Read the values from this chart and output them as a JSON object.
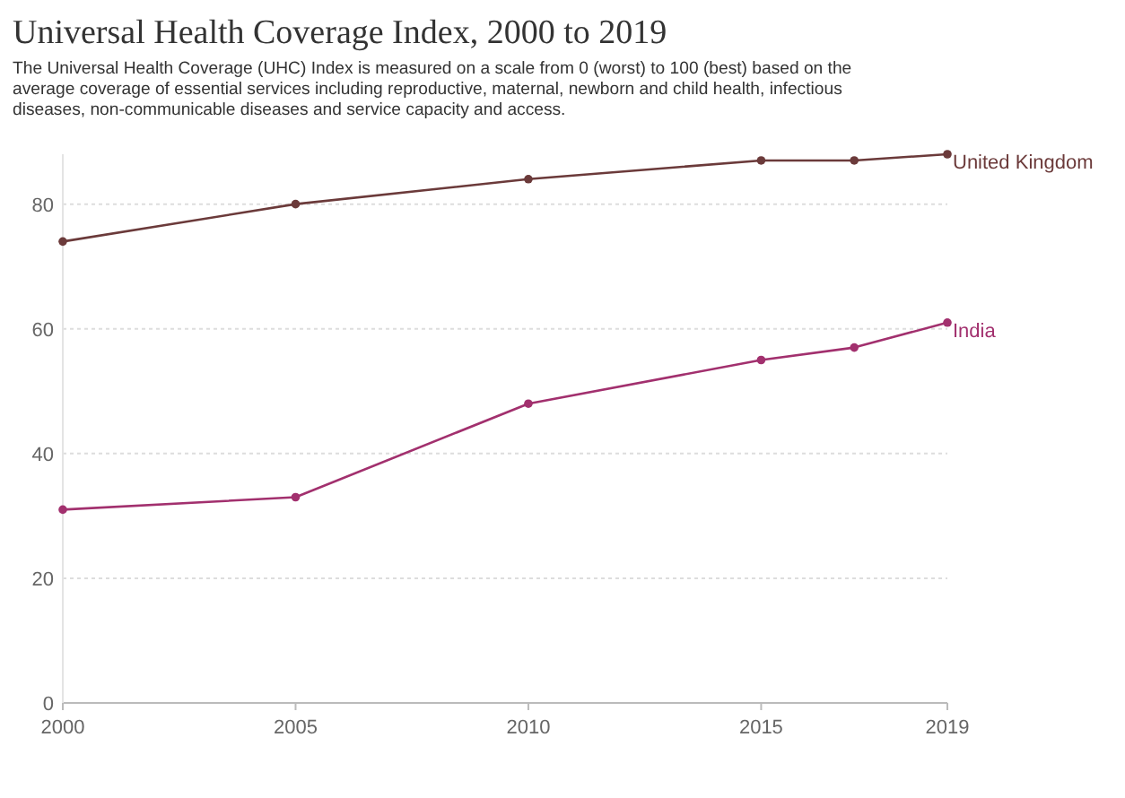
{
  "chart_data": {
    "type": "line",
    "title": "Universal Health Coverage Index, 2000 to 2019",
    "subtitle": "The Universal Health Coverage (UHC) Index is measured on a scale from 0 (worst) to 100 (best) based on the average coverage of essential services including reproductive, maternal, newborn and child health, infectious diseases, non-communicable diseases and service capacity and access.",
    "x": [
      2000,
      2005,
      2010,
      2015,
      2017,
      2019
    ],
    "series": [
      {
        "name": "United Kingdom",
        "color": "#6b3a3a",
        "values": [
          74,
          80,
          84,
          87,
          87,
          88
        ]
      },
      {
        "name": "India",
        "color": "#a2306e",
        "values": [
          31,
          33,
          48,
          55,
          57,
          61
        ]
      }
    ],
    "xlim": [
      2000,
      2019
    ],
    "xticks": [
      2000,
      2005,
      2010,
      2015,
      2019
    ],
    "ylim": [
      0,
      88
    ],
    "yticks": [
      0,
      20,
      40,
      60,
      80
    ],
    "grid": "y",
    "marker": "circle",
    "line_style": "solid"
  }
}
